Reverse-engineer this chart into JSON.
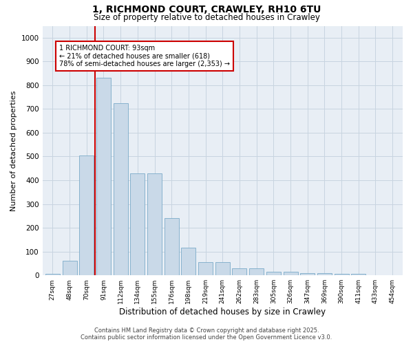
{
  "title_line1": "1, RICHMOND COURT, CRAWLEY, RH10 6TU",
  "title_line2": "Size of property relative to detached houses in Crawley",
  "xlabel": "Distribution of detached houses by size in Crawley",
  "ylabel": "Number of detached properties",
  "categories": [
    "27sqm",
    "48sqm",
    "70sqm",
    "91sqm",
    "112sqm",
    "134sqm",
    "155sqm",
    "176sqm",
    "198sqm",
    "219sqm",
    "241sqm",
    "262sqm",
    "283sqm",
    "305sqm",
    "326sqm",
    "347sqm",
    "369sqm",
    "390sqm",
    "411sqm",
    "433sqm",
    "454sqm"
  ],
  "values": [
    5,
    60,
    505,
    830,
    725,
    430,
    430,
    240,
    115,
    55,
    55,
    30,
    30,
    15,
    15,
    10,
    10,
    5,
    5,
    2,
    0
  ],
  "bar_color": "#c9d9e8",
  "bar_edge_color": "#7aaac8",
  "grid_color": "#c8d4e0",
  "bg_color": "#e8eef5",
  "vline_color": "#cc0000",
  "annotation_text": "1 RICHMOND COURT: 93sqm\n← 21% of detached houses are smaller (618)\n78% of semi-detached houses are larger (2,353) →",
  "annotation_box_color": "#cc0000",
  "ylim": [
    0,
    1050
  ],
  "yticks": [
    0,
    100,
    200,
    300,
    400,
    500,
    600,
    700,
    800,
    900,
    1000
  ],
  "footer_line1": "Contains HM Land Registry data © Crown copyright and database right 2025.",
  "footer_line2": "Contains public sector information licensed under the Open Government Licence v3.0."
}
